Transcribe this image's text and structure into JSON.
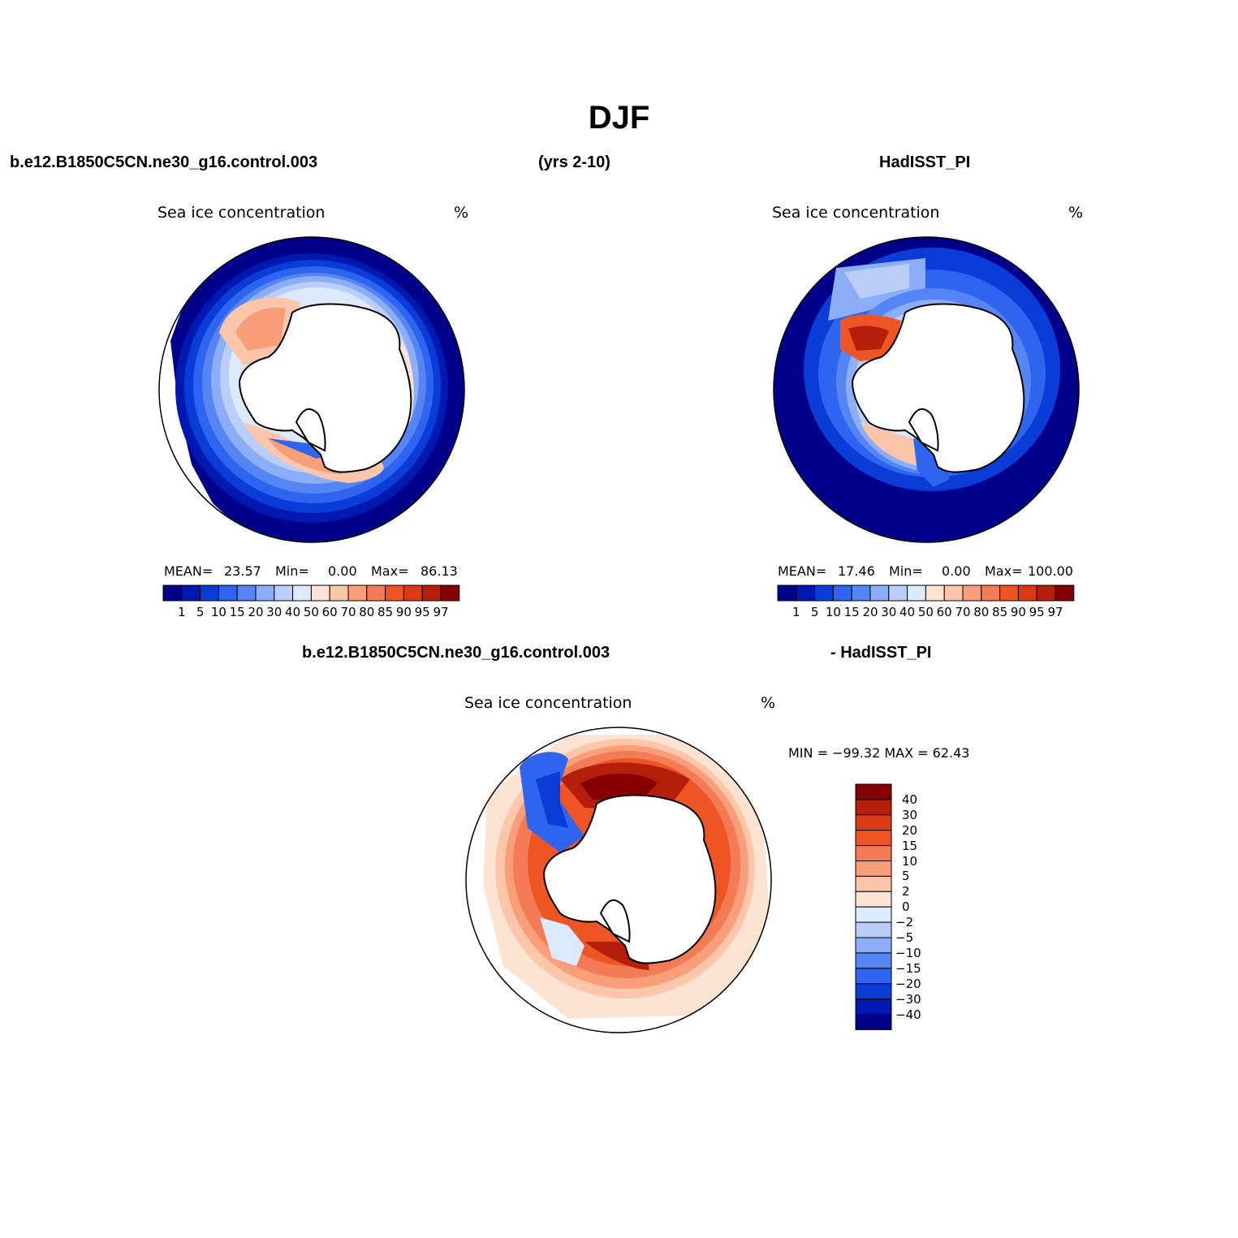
{
  "title": "DJF",
  "headers": {
    "case": "b.e12.B1850C5CN.ne30_g16.control.003",
    "years": "(yrs 2-10)",
    "obs": "HadISST_PI",
    "diff_case": "b.e12.B1850C5CN.ne30_g16.control.003",
    "diff_obs": "- HadISST_PI"
  },
  "panels": [
    {
      "title": "Sea ice concentration",
      "units": "%",
      "stats": {
        "mean_label": "MEAN=",
        "mean": "23.57",
        "min_label": "Min=",
        "min": "0.00",
        "max_label": "Max=",
        "max": "86.13"
      }
    },
    {
      "title": "Sea ice concentration",
      "units": "%",
      "stats": {
        "mean_label": "MEAN=",
        "mean": "17.46",
        "min_label": "Min=",
        "min": "0.00",
        "max_label": "Max=",
        "max": "100.00"
      }
    },
    {
      "title": "Sea ice concentration",
      "units": "%",
      "stats": {
        "text": "MIN = −99.32 MAX =   62.43"
      }
    }
  ],
  "colorbar_abs": {
    "levels": [
      "1",
      "5",
      "10",
      "15",
      "20",
      "30",
      "40",
      "50",
      "60",
      "70",
      "80",
      "85",
      "90",
      "95",
      "97"
    ],
    "colors": [
      "#00008b",
      "#0019b0",
      "#0a3cd8",
      "#2d64f0",
      "#5585f5",
      "#8cadf8",
      "#b9cffa",
      "#dceaff",
      "#fde4d2",
      "#fcc6aa",
      "#fa9e7a",
      "#f37b55",
      "#ee5424",
      "#dc3a14",
      "#b41e0a",
      "#870000"
    ]
  },
  "colorbar_diff": {
    "levels": [
      "40",
      "30",
      "20",
      "15",
      "10",
      "5",
      "2",
      "0",
      "−2",
      "−5",
      "−10",
      "−15",
      "−20",
      "−30",
      "−40"
    ],
    "colors": [
      "#870000",
      "#b41e0a",
      "#dc3a14",
      "#ee5424",
      "#f37b55",
      "#fa9e7a",
      "#fcc6aa",
      "#fde4d2",
      "#dceaff",
      "#b9cffa",
      "#8cadf8",
      "#5585f5",
      "#2d64f0",
      "#0a3cd8",
      "#0019b0",
      "#00008b"
    ]
  }
}
